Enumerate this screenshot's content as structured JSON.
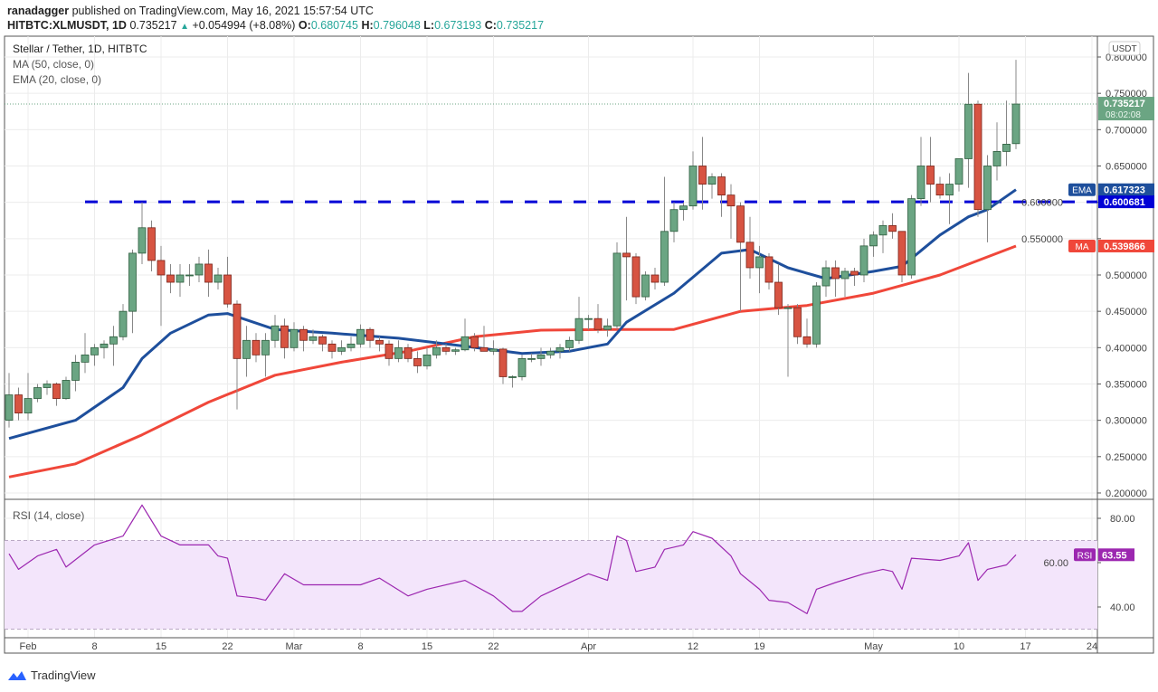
{
  "header": {
    "publisher": "ranadagger",
    "published_text": "published on TradingView.com, May 16, 2021 15:57:54 UTC",
    "symbol": "HITBTC:XLMUSDT, 1D",
    "last": "0.735217",
    "change": "+0.054994 (+8.08%)",
    "o_label": "O:",
    "o": "0.680745",
    "h_label": "H:",
    "h": "0.796048",
    "l_label": "L:",
    "l": "0.673193",
    "c_label": "C:",
    "c": "0.735217"
  },
  "legend": {
    "title": "Stellar / Tether, 1D, HITBTC",
    "ma": "MA (50, close, 0)",
    "ema": "EMA (20, close, 0)",
    "rsi": "RSI (14, close)"
  },
  "colors": {
    "up": "#6ba583",
    "down": "#d75442",
    "ema": "#1e4f9c",
    "ma": "#f0473a",
    "level": "#0000d6",
    "rsi": "#9c27b0",
    "rsi_band": "#f3e5fb"
  },
  "footer": {
    "brand": "TradingView"
  },
  "chart_data": {
    "type": "candlestick",
    "start_date": "2021-01-30",
    "interval": "1D",
    "currency_label": "USDT",
    "ylim": [
      0.19,
      0.81
    ],
    "yticks": [
      "0.800000",
      "0.750000",
      "0.700000",
      "0.650000",
      "0.600000",
      "0.550000",
      "0.500000",
      "0.450000",
      "0.400000",
      "0.350000",
      "0.300000",
      "0.250000",
      "0.200000"
    ],
    "ytick_values": [
      0.8,
      0.75,
      0.7,
      0.65,
      0.6,
      0.55,
      0.5,
      0.45,
      0.4,
      0.35,
      0.3,
      0.25,
      0.2
    ],
    "xticks": [
      {
        "label": "Feb",
        "date": "2021-02-01"
      },
      {
        "label": "8",
        "date": "2021-02-08"
      },
      {
        "label": "15",
        "date": "2021-02-15"
      },
      {
        "label": "22",
        "date": "2021-02-22"
      },
      {
        "label": "Mar",
        "date": "2021-03-01"
      },
      {
        "label": "8",
        "date": "2021-03-08"
      },
      {
        "label": "15",
        "date": "2021-03-15"
      },
      {
        "label": "22",
        "date": "2021-03-22"
      },
      {
        "label": "Apr",
        "date": "2021-04-01"
      },
      {
        "label": "12",
        "date": "2021-04-12"
      },
      {
        "label": "19",
        "date": "2021-04-19"
      },
      {
        "label": "May",
        "date": "2021-05-01"
      },
      {
        "label": "10",
        "date": "2021-05-10"
      },
      {
        "label": "17",
        "date": "2021-05-17"
      },
      {
        "label": "24",
        "date": "2021-05-24"
      }
    ],
    "ohlc": [
      [
        0.3,
        0.365,
        0.29,
        0.335
      ],
      [
        0.335,
        0.345,
        0.3,
        0.31
      ],
      [
        0.31,
        0.365,
        0.3,
        0.33
      ],
      [
        0.33,
        0.35,
        0.325,
        0.345
      ],
      [
        0.345,
        0.355,
        0.335,
        0.35
      ],
      [
        0.35,
        0.352,
        0.32,
        0.33
      ],
      [
        0.33,
        0.36,
        0.328,
        0.355
      ],
      [
        0.355,
        0.39,
        0.34,
        0.38
      ],
      [
        0.38,
        0.42,
        0.365,
        0.39
      ],
      [
        0.39,
        0.405,
        0.375,
        0.4
      ],
      [
        0.4,
        0.41,
        0.385,
        0.405
      ],
      [
        0.405,
        0.43,
        0.375,
        0.415
      ],
      [
        0.415,
        0.46,
        0.41,
        0.45
      ],
      [
        0.45,
        0.535,
        0.42,
        0.53
      ],
      [
        0.53,
        0.6,
        0.515,
        0.565
      ],
      [
        0.565,
        0.575,
        0.505,
        0.52
      ],
      [
        0.52,
        0.54,
        0.43,
        0.5
      ],
      [
        0.5,
        0.515,
        0.475,
        0.49
      ],
      [
        0.49,
        0.515,
        0.47,
        0.5
      ],
      [
        0.5,
        0.515,
        0.485,
        0.5
      ],
      [
        0.5,
        0.525,
        0.49,
        0.515
      ],
      [
        0.515,
        0.535,
        0.47,
        0.49
      ],
      [
        0.49,
        0.51,
        0.48,
        0.5
      ],
      [
        0.5,
        0.525,
        0.455,
        0.46
      ],
      [
        0.46,
        0.465,
        0.315,
        0.385
      ],
      [
        0.385,
        0.43,
        0.36,
        0.41
      ],
      [
        0.41,
        0.42,
        0.38,
        0.39
      ],
      [
        0.39,
        0.42,
        0.36,
        0.41
      ],
      [
        0.41,
        0.445,
        0.4,
        0.43
      ],
      [
        0.43,
        0.44,
        0.385,
        0.4
      ],
      [
        0.4,
        0.435,
        0.395,
        0.425
      ],
      [
        0.425,
        0.43,
        0.395,
        0.41
      ],
      [
        0.41,
        0.425,
        0.405,
        0.415
      ],
      [
        0.415,
        0.418,
        0.395,
        0.405
      ],
      [
        0.405,
        0.41,
        0.385,
        0.395
      ],
      [
        0.395,
        0.41,
        0.39,
        0.4
      ],
      [
        0.4,
        0.415,
        0.395,
        0.405
      ],
      [
        0.405,
        0.432,
        0.4,
        0.425
      ],
      [
        0.425,
        0.428,
        0.4,
        0.41
      ],
      [
        0.41,
        0.415,
        0.395,
        0.405
      ],
      [
        0.405,
        0.41,
        0.375,
        0.385
      ],
      [
        0.385,
        0.41,
        0.38,
        0.4
      ],
      [
        0.4,
        0.405,
        0.38,
        0.385
      ],
      [
        0.385,
        0.395,
        0.365,
        0.375
      ],
      [
        0.375,
        0.4,
        0.37,
        0.39
      ],
      [
        0.39,
        0.41,
        0.385,
        0.4
      ],
      [
        0.4,
        0.405,
        0.39,
        0.395
      ],
      [
        0.395,
        0.4,
        0.39,
        0.397
      ],
      [
        0.397,
        0.44,
        0.395,
        0.415
      ],
      [
        0.415,
        0.42,
        0.395,
        0.4
      ],
      [
        0.4,
        0.43,
        0.395,
        0.395
      ],
      [
        0.395,
        0.41,
        0.39,
        0.398
      ],
      [
        0.398,
        0.4,
        0.35,
        0.36
      ],
      [
        0.36,
        0.362,
        0.345,
        0.36
      ],
      [
        0.36,
        0.39,
        0.355,
        0.385
      ],
      [
        0.385,
        0.392,
        0.38,
        0.385
      ],
      [
        0.385,
        0.4,
        0.375,
        0.39
      ],
      [
        0.39,
        0.4,
        0.385,
        0.395
      ],
      [
        0.395,
        0.405,
        0.385,
        0.4
      ],
      [
        0.4,
        0.415,
        0.395,
        0.41
      ],
      [
        0.41,
        0.47,
        0.405,
        0.44
      ],
      [
        0.44,
        0.445,
        0.425,
        0.44
      ],
      [
        0.44,
        0.46,
        0.42,
        0.425
      ],
      [
        0.425,
        0.44,
        0.415,
        0.43
      ],
      [
        0.43,
        0.545,
        0.425,
        0.53
      ],
      [
        0.53,
        0.58,
        0.465,
        0.525
      ],
      [
        0.525,
        0.53,
        0.46,
        0.47
      ],
      [
        0.47,
        0.505,
        0.465,
        0.5
      ],
      [
        0.5,
        0.51,
        0.48,
        0.49
      ],
      [
        0.49,
        0.635,
        0.485,
        0.56
      ],
      [
        0.56,
        0.6,
        0.545,
        0.59
      ],
      [
        0.59,
        0.6,
        0.575,
        0.595
      ],
      [
        0.595,
        0.67,
        0.59,
        0.65
      ],
      [
        0.65,
        0.69,
        0.59,
        0.625
      ],
      [
        0.625,
        0.64,
        0.605,
        0.635
      ],
      [
        0.635,
        0.64,
        0.58,
        0.61
      ],
      [
        0.61,
        0.625,
        0.55,
        0.595
      ],
      [
        0.595,
        0.6,
        0.45,
        0.545
      ],
      [
        0.545,
        0.58,
        0.495,
        0.51
      ],
      [
        0.51,
        0.54,
        0.475,
        0.525
      ],
      [
        0.525,
        0.53,
        0.48,
        0.49
      ],
      [
        0.49,
        0.515,
        0.445,
        0.455
      ],
      [
        0.455,
        0.46,
        0.36,
        0.455
      ],
      [
        0.455,
        0.46,
        0.405,
        0.415
      ],
      [
        0.415,
        0.44,
        0.4,
        0.405
      ],
      [
        0.405,
        0.49,
        0.4,
        0.485
      ],
      [
        0.485,
        0.52,
        0.47,
        0.51
      ],
      [
        0.51,
        0.52,
        0.47,
        0.495
      ],
      [
        0.495,
        0.51,
        0.47,
        0.505
      ],
      [
        0.505,
        0.51,
        0.485,
        0.5
      ],
      [
        0.5,
        0.55,
        0.49,
        0.54
      ],
      [
        0.54,
        0.56,
        0.525,
        0.555
      ],
      [
        0.555,
        0.575,
        0.53,
        0.568
      ],
      [
        0.568,
        0.585,
        0.55,
        0.56
      ],
      [
        0.56,
        0.56,
        0.49,
        0.5
      ],
      [
        0.5,
        0.61,
        0.495,
        0.605
      ],
      [
        0.605,
        0.69,
        0.595,
        0.65
      ],
      [
        0.65,
        0.69,
        0.6,
        0.625
      ],
      [
        0.625,
        0.635,
        0.605,
        0.61
      ],
      [
        0.61,
        0.64,
        0.57,
        0.625
      ],
      [
        0.625,
        0.66,
        0.615,
        0.66
      ],
      [
        0.66,
        0.778,
        0.62,
        0.735
      ],
      [
        0.735,
        0.74,
        0.58,
        0.59
      ],
      [
        0.59,
        0.665,
        0.545,
        0.65
      ],
      [
        0.65,
        0.71,
        0.63,
        0.67
      ],
      [
        0.67,
        0.74,
        0.65,
        0.68
      ],
      [
        0.680745,
        0.796048,
        0.673193,
        0.735217
      ]
    ],
    "ema20": [
      [
        "2021-01-30",
        0.275
      ],
      [
        "2021-02-06",
        0.3
      ],
      [
        "2021-02-11",
        0.345
      ],
      [
        "2021-02-13",
        0.385
      ],
      [
        "2021-02-16",
        0.42
      ],
      [
        "2021-02-20",
        0.445
      ],
      [
        "2021-02-22",
        0.447
      ],
      [
        "2021-02-27",
        0.425
      ],
      [
        "2021-03-05",
        0.42
      ],
      [
        "2021-03-12",
        0.413
      ],
      [
        "2021-03-19",
        0.402
      ],
      [
        "2021-03-25",
        0.392
      ],
      [
        "2021-03-30",
        0.395
      ],
      [
        "2021-04-03",
        0.405
      ],
      [
        "2021-04-05",
        0.435
      ],
      [
        "2021-04-10",
        0.475
      ],
      [
        "2021-04-15",
        0.53
      ],
      [
        "2021-04-18",
        0.535
      ],
      [
        "2021-04-22",
        0.51
      ],
      [
        "2021-04-26",
        0.495
      ],
      [
        "2021-05-01",
        0.505
      ],
      [
        "2021-05-04",
        0.512
      ],
      [
        "2021-05-08",
        0.555
      ],
      [
        "2021-05-11",
        0.58
      ],
      [
        "2021-05-13",
        0.59
      ],
      [
        "2021-05-16",
        0.617323
      ]
    ],
    "ma50": [
      [
        "2021-01-30",
        0.222
      ],
      [
        "2021-02-06",
        0.24
      ],
      [
        "2021-02-13",
        0.28
      ],
      [
        "2021-02-20",
        0.325
      ],
      [
        "2021-02-27",
        0.362
      ],
      [
        "2021-03-06",
        0.38
      ],
      [
        "2021-03-13",
        0.395
      ],
      [
        "2021-03-20",
        0.415
      ],
      [
        "2021-03-27",
        0.424
      ],
      [
        "2021-04-03",
        0.425
      ],
      [
        "2021-04-10",
        0.425
      ],
      [
        "2021-04-17",
        0.45
      ],
      [
        "2021-04-24",
        0.458
      ],
      [
        "2021-05-01",
        0.475
      ],
      [
        "2021-05-08",
        0.5
      ],
      [
        "2021-05-16",
        0.539866
      ]
    ],
    "horizontal_level": {
      "value": 0.600681,
      "start_date": "2021-02-07",
      "style": "dashed"
    },
    "price_labels": [
      {
        "name": "",
        "value": "0.735217",
        "sub": "08:02:08",
        "color": "#6ba583",
        "y": 0.735217
      },
      {
        "name": "EMA",
        "value": "0.617323",
        "color": "#1e4f9c",
        "y": 0.617323
      },
      {
        "name": "",
        "value": "0.600681",
        "color": "#0000d6",
        "y": 0.600681
      },
      {
        "name": "MA",
        "value": "0.539866",
        "color": "#f0473a",
        "y": 0.539866
      }
    ],
    "rsi": {
      "ylim": [
        25,
        92
      ],
      "yticks": [
        "80.00",
        "60.00",
        "40.00"
      ],
      "ytick_values": [
        80,
        60,
        40
      ],
      "band": [
        30,
        70
      ],
      "current": {
        "name": "RSI",
        "value": "63.55"
      },
      "points": [
        [
          "2021-01-30",
          64
        ],
        [
          "2021-01-31",
          57
        ],
        [
          "2021-02-02",
          63
        ],
        [
          "2021-02-04",
          66
        ],
        [
          "2021-02-05",
          58
        ],
        [
          "2021-02-08",
          68
        ],
        [
          "2021-02-11",
          72
        ],
        [
          "2021-02-12",
          79
        ],
        [
          "2021-02-13",
          86
        ],
        [
          "2021-02-14",
          79
        ],
        [
          "2021-02-15",
          72
        ],
        [
          "2021-02-17",
          68
        ],
        [
          "2021-02-20",
          68
        ],
        [
          "2021-02-21",
          63
        ],
        [
          "2021-02-22",
          62
        ],
        [
          "2021-02-23",
          45
        ],
        [
          "2021-02-25",
          44
        ],
        [
          "2021-02-26",
          43
        ],
        [
          "2021-02-28",
          55
        ],
        [
          "2021-03-02",
          50
        ],
        [
          "2021-03-05",
          50
        ],
        [
          "2021-03-08",
          50
        ],
        [
          "2021-03-10",
          53
        ],
        [
          "2021-03-13",
          45
        ],
        [
          "2021-03-15",
          48
        ],
        [
          "2021-03-19",
          52
        ],
        [
          "2021-03-22",
          45
        ],
        [
          "2021-03-24",
          38
        ],
        [
          "2021-03-25",
          38
        ],
        [
          "2021-03-27",
          45
        ],
        [
          "2021-04-01",
          55
        ],
        [
          "2021-04-03",
          52
        ],
        [
          "2021-04-04",
          72
        ],
        [
          "2021-04-05",
          70
        ],
        [
          "2021-04-06",
          56
        ],
        [
          "2021-04-08",
          58
        ],
        [
          "2021-04-09",
          66
        ],
        [
          "2021-04-11",
          68
        ],
        [
          "2021-04-12",
          74
        ],
        [
          "2021-04-14",
          71
        ],
        [
          "2021-04-16",
          63
        ],
        [
          "2021-04-17",
          55
        ],
        [
          "2021-04-19",
          48
        ],
        [
          "2021-04-20",
          43
        ],
        [
          "2021-04-22",
          42
        ],
        [
          "2021-04-24",
          37
        ],
        [
          "2021-04-25",
          48
        ],
        [
          "2021-04-27",
          51
        ],
        [
          "2021-04-30",
          55
        ],
        [
          "2021-05-02",
          57
        ],
        [
          "2021-05-03",
          56
        ],
        [
          "2021-05-04",
          48
        ],
        [
          "2021-05-05",
          62
        ],
        [
          "2021-05-08",
          61
        ],
        [
          "2021-05-10",
          63
        ],
        [
          "2021-05-11",
          69
        ],
        [
          "2021-05-12",
          52
        ],
        [
          "2021-05-13",
          57
        ],
        [
          "2021-05-15",
          59
        ],
        [
          "2021-05-16",
          63.55
        ]
      ]
    }
  }
}
